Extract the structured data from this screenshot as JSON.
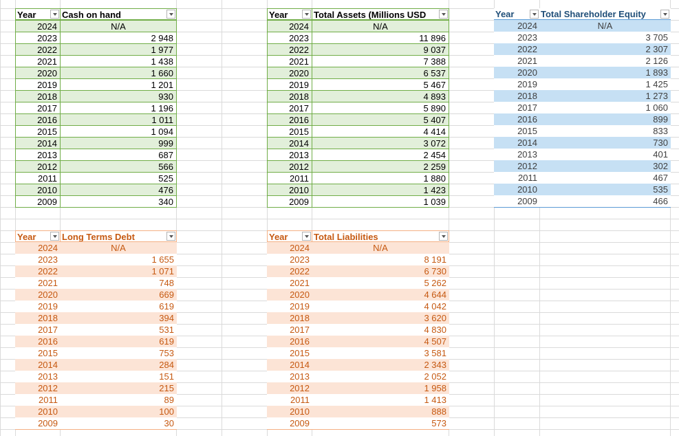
{
  "tables": [
    {
      "header": [
        "Year",
        "Cash on hand"
      ],
      "rows": [
        [
          "2024",
          "N/A"
        ],
        [
          "2023",
          "2 948"
        ],
        [
          "2022",
          "1 977"
        ],
        [
          "2021",
          "1 438"
        ],
        [
          "2020",
          "1 660"
        ],
        [
          "2019",
          "1 201"
        ],
        [
          "2018",
          "930"
        ],
        [
          "2017",
          "1 196"
        ],
        [
          "2016",
          "1 011"
        ],
        [
          "2015",
          "1 094"
        ],
        [
          "2014",
          "999"
        ],
        [
          "2013",
          "687"
        ],
        [
          "2012",
          "566"
        ],
        [
          "2011",
          "525"
        ],
        [
          "2010",
          "476"
        ],
        [
          "2009",
          "340"
        ]
      ]
    },
    {
      "header": [
        "Year",
        "Total Assets (Millions USD"
      ],
      "rows": [
        [
          "2024",
          "N/A"
        ],
        [
          "2023",
          "11 896"
        ],
        [
          "2022",
          "9 037"
        ],
        [
          "2021",
          "7 388"
        ],
        [
          "2020",
          "6 537"
        ],
        [
          "2019",
          "5 467"
        ],
        [
          "2018",
          "4 893"
        ],
        [
          "2017",
          "5 890"
        ],
        [
          "2016",
          "5 407"
        ],
        [
          "2015",
          "4 414"
        ],
        [
          "2014",
          "3 072"
        ],
        [
          "2013",
          "2 454"
        ],
        [
          "2012",
          "2 259"
        ],
        [
          "2011",
          "1 880"
        ],
        [
          "2010",
          "1 423"
        ],
        [
          "2009",
          "1 039"
        ]
      ]
    },
    {
      "header": [
        "Year",
        "Total Shareholder Equity"
      ],
      "rows": [
        [
          "2024",
          "N/A"
        ],
        [
          "2023",
          "3 705"
        ],
        [
          "2022",
          "2 307"
        ],
        [
          "2021",
          "2 126"
        ],
        [
          "2020",
          "1 893"
        ],
        [
          "2019",
          "1 425"
        ],
        [
          "2018",
          "1 273"
        ],
        [
          "2017",
          "1 060"
        ],
        [
          "2016",
          "899"
        ],
        [
          "2015",
          "833"
        ],
        [
          "2014",
          "730"
        ],
        [
          "2013",
          "401"
        ],
        [
          "2012",
          "302"
        ],
        [
          "2011",
          "467"
        ],
        [
          "2010",
          "535"
        ],
        [
          "2009",
          "466"
        ]
      ]
    },
    {
      "header": [
        "Year",
        "Long Terms Debt"
      ],
      "rows": [
        [
          "2024",
          "N/A"
        ],
        [
          "2023",
          "1 655"
        ],
        [
          "2022",
          "1 071"
        ],
        [
          "2021",
          "748"
        ],
        [
          "2020",
          "669"
        ],
        [
          "2019",
          "619"
        ],
        [
          "2018",
          "394"
        ],
        [
          "2017",
          "531"
        ],
        [
          "2016",
          "619"
        ],
        [
          "2015",
          "753"
        ],
        [
          "2014",
          "284"
        ],
        [
          "2013",
          "151"
        ],
        [
          "2012",
          "215"
        ],
        [
          "2011",
          "89"
        ],
        [
          "2010",
          "100"
        ],
        [
          "2009",
          "30"
        ]
      ]
    },
    {
      "header": [
        "Year",
        "Total Liabilities"
      ],
      "rows": [
        [
          "2024",
          "N/A"
        ],
        [
          "2023",
          "8 191"
        ],
        [
          "2022",
          "6 730"
        ],
        [
          "2021",
          "5 262"
        ],
        [
          "2020",
          "4 644"
        ],
        [
          "2019",
          "4 042"
        ],
        [
          "2018",
          "3 620"
        ],
        [
          "2017",
          "4 830"
        ],
        [
          "2016",
          "4 507"
        ],
        [
          "2015",
          "3 581"
        ],
        [
          "2014",
          "2 343"
        ],
        [
          "2013",
          "2 052"
        ],
        [
          "2012",
          "1 958"
        ],
        [
          "2011",
          "1 413"
        ],
        [
          "2010",
          "888"
        ],
        [
          "2009",
          "573"
        ]
      ]
    }
  ]
}
